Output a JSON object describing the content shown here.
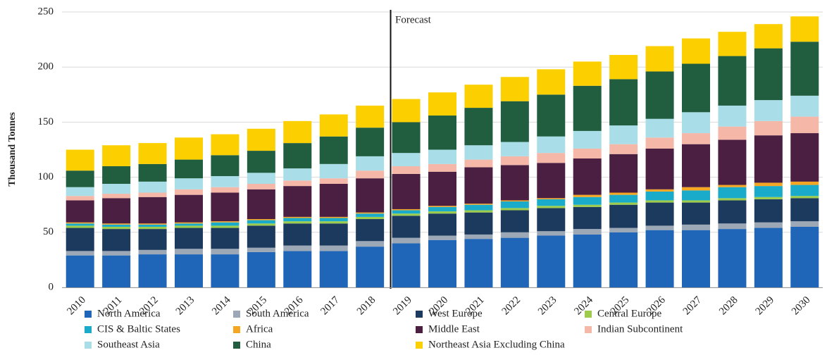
{
  "chart_data": {
    "type": "stacked_bar",
    "y_label": "Thousand Tonnes",
    "annotation": "Forecast",
    "categories": [
      "2010",
      "2011",
      "2012",
      "2013",
      "2014",
      "2015",
      "2016",
      "2017",
      "2018",
      "2019",
      "2020",
      "2021",
      "2022",
      "2023",
      "2024",
      "2025",
      "2026",
      "2027",
      "2028",
      "2029",
      "2030"
    ],
    "ylim": [
      0,
      250
    ],
    "yticks": [
      0,
      50,
      100,
      150,
      200,
      250
    ],
    "grid": true,
    "series": [
      {
        "name": "North America",
        "color": "#1f66b8",
        "values": [
          29,
          29,
          30,
          30,
          30,
          32,
          33,
          33,
          37,
          40,
          43,
          44,
          45,
          47,
          48,
          50,
          52,
          52,
          53,
          54,
          55
        ]
      },
      {
        "name": "South America",
        "color": "#9ca8b6",
        "values": [
          4,
          4,
          4,
          5,
          5,
          4,
          5,
          5,
          5,
          5,
          4,
          4,
          5,
          4,
          5,
          4,
          4,
          5,
          5,
          5,
          5
        ]
      },
      {
        "name": "West Europe",
        "color": "#1b3a5e",
        "values": [
          21,
          20,
          19,
          19,
          19,
          20,
          20,
          20,
          20,
          20,
          20,
          20,
          20,
          21,
          20,
          21,
          21,
          20,
          21,
          21,
          21
        ]
      },
      {
        "name": "Central Europe",
        "color": "#9dcc4c",
        "values": [
          2,
          2,
          2,
          2,
          2,
          2,
          2,
          2,
          2,
          2,
          2,
          2,
          2,
          2,
          2,
          2,
          2,
          2,
          2,
          2,
          2
        ]
      },
      {
        "name": "CIS & Baltic States",
        "color": "#1aaaca",
        "values": [
          2,
          2,
          2,
          2,
          3,
          3,
          3,
          3,
          3,
          3,
          4,
          5,
          6,
          6,
          7,
          7,
          8,
          9,
          10,
          10,
          10
        ]
      },
      {
        "name": "Africa",
        "color": "#f5a623",
        "values": [
          1,
          1,
          1,
          1,
          1,
          1,
          1,
          1,
          1,
          1,
          1,
          1,
          1,
          1,
          2,
          2,
          2,
          3,
          2,
          3,
          3
        ]
      },
      {
        "name": "Middle East",
        "color": "#4a1f42",
        "values": [
          20,
          23,
          24,
          25,
          26,
          27,
          28,
          30,
          31,
          32,
          31,
          33,
          32,
          32,
          33,
          35,
          37,
          39,
          41,
          43,
          44
        ]
      },
      {
        "name": "Indian Subcontinent",
        "color": "#f5b8a8",
        "values": [
          4,
          4,
          4,
          5,
          5,
          5,
          5,
          5,
          7,
          7,
          7,
          7,
          8,
          9,
          9,
          9,
          10,
          10,
          12,
          13,
          15
        ]
      },
      {
        "name": "Southeast Asia",
        "color": "#a9dde8",
        "values": [
          8,
          9,
          10,
          10,
          10,
          10,
          11,
          13,
          13,
          12,
          13,
          13,
          13,
          15,
          16,
          17,
          17,
          19,
          19,
          19,
          19
        ]
      },
      {
        "name": "China",
        "color": "#215e40",
        "values": [
          15,
          16,
          16,
          17,
          19,
          20,
          23,
          25,
          26,
          28,
          31,
          34,
          37,
          38,
          41,
          42,
          43,
          44,
          45,
          47,
          49
        ]
      },
      {
        "name": "Northeast Asia Excluding China",
        "color": "#fcd000",
        "values": [
          19,
          19,
          19,
          20,
          19,
          20,
          20,
          20,
          20,
          21,
          21,
          21,
          22,
          23,
          22,
          22,
          23,
          23,
          22,
          22,
          23
        ]
      }
    ]
  }
}
